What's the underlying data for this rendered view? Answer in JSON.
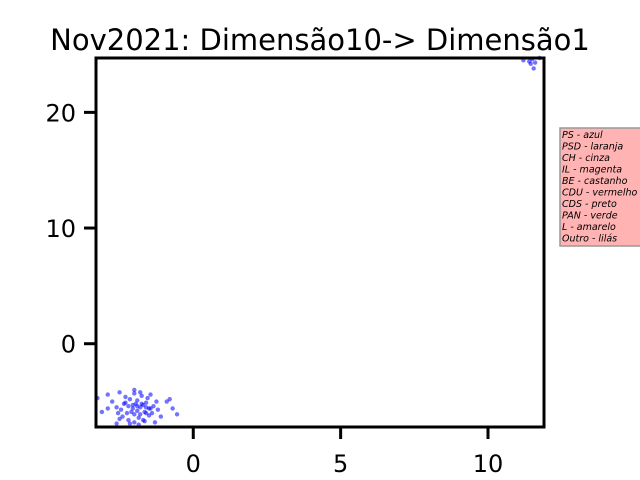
{
  "chart_data": {
    "type": "scatter",
    "title": "Nov2021: Dimensão10-> Dimensão1",
    "xlabel": "",
    "ylabel": "",
    "xlim": [
      -3.3,
      11.9
    ],
    "ylim": [
      -7.2,
      24.7
    ],
    "x_ticks": [
      {
        "value": 0,
        "label": "0"
      },
      {
        "value": 5,
        "label": "5"
      },
      {
        "value": 10,
        "label": "10"
      }
    ],
    "y_ticks": [
      {
        "value": 0,
        "label": "0"
      },
      {
        "value": 10,
        "label": "10"
      },
      {
        "value": 20,
        "label": "20"
      }
    ],
    "grid": false,
    "legend_placement": "outside-right",
    "legend_entries": [
      "PS - azul",
      "PSD - laranja",
      "CH - cinza",
      "IL - magenta",
      "BE - castanho",
      "CDU - vermelho",
      "CDS - preto",
      "PAN - verde",
      "L - amarelo",
      "Outro - lilás"
    ],
    "colors": {
      "points": "#0000ff",
      "legend_background": "#ffb3b3",
      "legend_border": "#999999",
      "axes": "#000000"
    },
    "series": [
      {
        "x": [
          -2.9,
          -2.75,
          -2.6,
          -2.55,
          -2.5,
          -2.45,
          -2.4,
          -2.35,
          -2.3,
          -2.25,
          -2.2,
          -2.2,
          -2.15,
          -2.1,
          -2.05,
          -2.0,
          -2.0,
          -1.95,
          -1.9,
          -1.9,
          -1.85,
          -1.8,
          -1.8,
          -1.75,
          -1.7,
          -1.7,
          -1.65,
          -1.6,
          -1.55,
          -1.5,
          -1.5,
          -1.45,
          -1.4,
          -1.35,
          -1.3,
          -1.25,
          -1.2,
          -1.1,
          -0.9,
          -0.8,
          -0.7,
          -0.55,
          -2.3,
          -2.05,
          -1.9,
          -1.75,
          -1.6,
          -1.45,
          -2.5,
          -2.15,
          -1.85,
          -1.65,
          -2.0,
          -1.8,
          -2.6,
          -3.25,
          -3.1,
          -2.0,
          -2.9,
          -1.6,
          11.2,
          11.4,
          11.5,
          11.6,
          11.55,
          11.75,
          11.45
        ],
        "y": [
          -4.4,
          -5.0,
          -5.5,
          -6.0,
          -4.2,
          -5.7,
          -6.3,
          -5.2,
          -4.6,
          -6.0,
          -5.4,
          -6.6,
          -4.8,
          -5.9,
          -5.6,
          -4.3,
          -6.8,
          -5.2,
          -5.8,
          -4.9,
          -6.4,
          -5.5,
          -6.1,
          -4.5,
          -5.3,
          -6.6,
          -5.9,
          -5.1,
          -4.7,
          -6.2,
          -5.6,
          -4.4,
          -6.0,
          -5.4,
          -6.8,
          -5.0,
          -5.7,
          -6.3,
          -5.0,
          -4.8,
          -5.6,
          -6.1,
          -5.1,
          -5.3,
          -5.4,
          -5.2,
          -5.5,
          -5.6,
          -6.5,
          -6.9,
          -7.0,
          -6.7,
          -4.0,
          -4.2,
          -6.9,
          -4.7,
          -5.9,
          -6.1,
          -5.6,
          -6.0,
          24.5,
          24.4,
          24.6,
          24.3,
          23.8,
          24.7,
          24.2
        ]
      }
    ]
  }
}
